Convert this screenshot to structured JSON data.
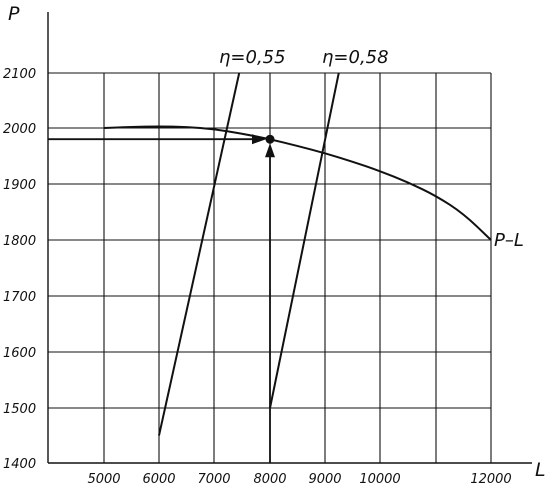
{
  "chart_data": {
    "type": "line",
    "title": "",
    "xlabel": "L",
    "ylabel": "P",
    "xlim": [
      4000,
      12000
    ],
    "ylim": [
      1400,
      2200
    ],
    "grid": true,
    "x_ticks": [
      5000,
      6000,
      7000,
      8000,
      9000,
      10000,
      12000
    ],
    "x_tick_labels": [
      "5000",
      "6000",
      "7000",
      "8000",
      "9000",
      "10000",
      "12000"
    ],
    "y_ticks": [
      1400,
      1500,
      1600,
      1700,
      1800,
      1900,
      2000,
      2100
    ],
    "y_tick_labels": [
      "1400",
      "1500",
      "1600",
      "1700",
      "1800",
      "1900",
      "2000",
      "2100"
    ],
    "series": [
      {
        "name": "P–L",
        "x": [
          5000,
          5500,
          6000,
          6500,
          7000,
          7500,
          8000,
          8500,
          9000,
          9500,
          10000,
          10500,
          11000,
          11500,
          12000
        ],
        "y": [
          2000,
          2002,
          2003,
          2002,
          1998,
          1990,
          1980,
          1968,
          1955,
          1940,
          1923,
          1903,
          1879,
          1847,
          1800
        ]
      },
      {
        "name": "η=0,55",
        "x": [
          6000,
          7450
        ],
        "y": [
          1450,
          2100
        ]
      },
      {
        "name": "η=0,58",
        "x": [
          8000,
          9250
        ],
        "y": [
          1500,
          2100
        ]
      }
    ],
    "operating_point": {
      "x": 8000,
      "y": 1980
    },
    "annotations": [
      "η=0,55",
      "η=0,58",
      "P–L"
    ]
  }
}
